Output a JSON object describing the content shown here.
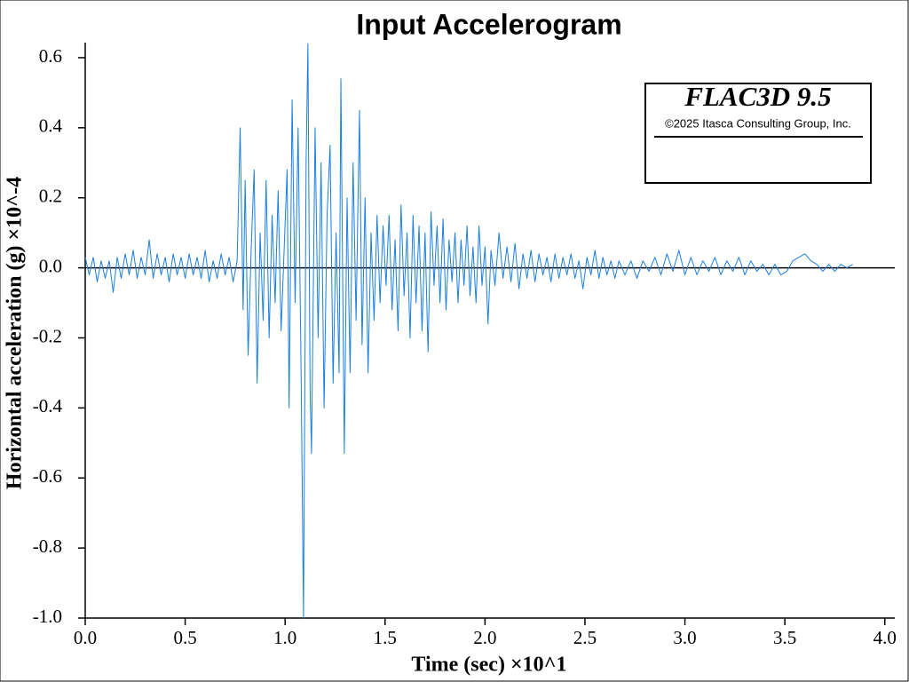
{
  "chart_data": {
    "type": "line",
    "title": "Input Accelerogram",
    "x_label": "Time (sec) ×10^1",
    "y_label": "Horizontal acceleration (g) ×10^-4",
    "annotations": [
      "FLAC3D 9.5",
      "©2025 Itasca Consulting Group, Inc."
    ],
    "xlim": [
      0,
      4.05
    ],
    "ylim": [
      -1,
      0.643
    ],
    "xticks": [
      {
        "value": 0,
        "label": "0.0"
      },
      0.5,
      {
        "value": 1,
        "label": "1.0"
      },
      1.5,
      {
        "value": 2,
        "label": "2.0"
      },
      2.5,
      {
        "value": 3,
        "label": "3.0"
      },
      3.5,
      {
        "value": 4,
        "label": "4.0"
      }
    ],
    "yticks": [
      0.6,
      0.4,
      0.2,
      {
        "value": 0,
        "label": "0.0"
      },
      -0.2,
      -0.4,
      -0.6,
      -0.8,
      {
        "value": -1,
        "label": "-1.0"
      }
    ],
    "zero_line": true,
    "x": [
      0.0,
      0.02,
      0.04,
      0.06,
      0.08,
      0.1,
      0.12,
      0.14,
      0.16,
      0.18,
      0.2,
      0.22,
      0.24,
      0.26,
      0.28,
      0.3,
      0.32,
      0.34,
      0.36,
      0.38,
      0.4,
      0.42,
      0.44,
      0.46,
      0.48,
      0.5,
      0.52,
      0.54,
      0.56,
      0.58,
      0.6,
      0.62,
      0.64,
      0.66,
      0.68,
      0.7,
      0.72,
      0.74,
      0.76,
      0.775,
      0.79,
      0.8,
      0.815,
      0.83,
      0.845,
      0.86,
      0.875,
      0.89,
      0.905,
      0.92,
      0.935,
      0.95,
      0.965,
      0.98,
      0.995,
      1.01,
      1.02,
      1.035,
      1.05,
      1.065,
      1.08,
      1.092,
      1.105,
      1.114,
      1.125,
      1.132,
      1.15,
      1.165,
      1.18,
      1.195,
      1.21,
      1.225,
      1.24,
      1.255,
      1.27,
      1.279,
      1.296,
      1.31,
      1.325,
      1.34,
      1.355,
      1.372,
      1.385,
      1.4,
      1.415,
      1.43,
      1.445,
      1.46,
      1.475,
      1.49,
      1.505,
      1.52,
      1.535,
      1.55,
      1.565,
      1.58,
      1.595,
      1.61,
      1.625,
      1.64,
      1.655,
      1.67,
      1.685,
      1.7,
      1.715,
      1.73,
      1.745,
      1.76,
      1.775,
      1.79,
      1.805,
      1.82,
      1.835,
      1.85,
      1.865,
      1.88,
      1.895,
      1.91,
      1.925,
      1.94,
      1.955,
      1.97,
      1.985,
      2.0,
      2.015,
      2.03,
      2.05,
      2.07,
      2.09,
      2.11,
      2.13,
      2.15,
      2.17,
      2.19,
      2.21,
      2.23,
      2.25,
      2.27,
      2.29,
      2.31,
      2.33,
      2.35,
      2.37,
      2.39,
      2.41,
      2.43,
      2.45,
      2.47,
      2.49,
      2.51,
      2.53,
      2.55,
      2.57,
      2.59,
      2.61,
      2.63,
      2.65,
      2.67,
      2.7,
      2.73,
      2.76,
      2.79,
      2.82,
      2.85,
      2.88,
      2.91,
      2.94,
      2.97,
      3.0,
      3.03,
      3.06,
      3.09,
      3.12,
      3.15,
      3.18,
      3.21,
      3.24,
      3.27,
      3.3,
      3.33,
      3.36,
      3.39,
      3.42,
      3.45,
      3.48,
      3.51,
      3.54,
      3.57,
      3.6,
      3.63,
      3.66,
      3.69,
      3.72,
      3.75,
      3.78,
      3.81,
      3.84
    ],
    "series": [
      {
        "color": "#1a7fe0",
        "values": [
          0.03,
          -0.02,
          0.03,
          -0.04,
          0.02,
          -0.03,
          0.02,
          -0.07,
          0.03,
          -0.03,
          0.04,
          -0.02,
          0.05,
          -0.03,
          0.03,
          -0.02,
          0.08,
          -0.03,
          0.04,
          -0.02,
          0.03,
          -0.04,
          0.04,
          -0.02,
          0.03,
          -0.03,
          0.04,
          -0.02,
          0.03,
          -0.03,
          0.05,
          -0.04,
          0.02,
          -0.03,
          0.04,
          -0.02,
          0.03,
          -0.04,
          0.02,
          0.4,
          -0.12,
          0.25,
          -0.25,
          0.05,
          0.28,
          -0.33,
          0.1,
          -0.15,
          0.25,
          -0.2,
          0.15,
          -0.1,
          0.22,
          -0.18,
          0.05,
          0.28,
          -0.4,
          0.48,
          -0.1,
          0.4,
          -0.3,
          -1.0,
          0.3,
          0.64,
          -0.35,
          -0.53,
          0.4,
          -0.2,
          0.3,
          -0.4,
          0.15,
          0.35,
          -0.33,
          0.1,
          -0.3,
          0.54,
          -0.53,
          0.2,
          -0.3,
          0.3,
          -0.15,
          0.45,
          -0.22,
          0.2,
          -0.3,
          0.1,
          -0.15,
          0.15,
          -0.1,
          0.12,
          -0.05,
          0.15,
          -0.12,
          0.08,
          -0.18,
          0.18,
          -0.08,
          0.1,
          -0.2,
          0.15,
          -0.1,
          0.12,
          -0.18,
          0.1,
          -0.24,
          0.16,
          -0.05,
          0.12,
          -0.1,
          0.14,
          -0.12,
          0.08,
          -0.04,
          0.1,
          -0.1,
          0.08,
          -0.05,
          0.12,
          -0.08,
          0.06,
          -0.1,
          0.12,
          -0.05,
          0.06,
          -0.16,
          0.05,
          -0.05,
          0.1,
          -0.03,
          0.06,
          -0.04,
          0.07,
          -0.06,
          0.04,
          -0.03,
          0.05,
          -0.04,
          0.04,
          -0.02,
          0.03,
          -0.04,
          0.04,
          -0.03,
          0.03,
          -0.02,
          0.04,
          -0.03,
          0.02,
          -0.06,
          0.03,
          -0.02,
          0.05,
          -0.03,
          0.03,
          -0.02,
          0.02,
          -0.03,
          0.02,
          -0.02,
          0.02,
          -0.03,
          0.02,
          -0.01,
          0.03,
          -0.02,
          0.04,
          -0.01,
          0.05,
          -0.02,
          0.03,
          -0.02,
          0.02,
          -0.01,
          0.03,
          -0.02,
          0.02,
          -0.01,
          0.03,
          -0.02,
          0.02,
          -0.01,
          0.01,
          -0.02,
          0.01,
          -0.02,
          -0.01,
          0.02,
          0.03,
          0.04,
          0.02,
          0.01,
          -0.01,
          0.01,
          -0.01,
          0.01,
          0.0,
          0.01
        ]
      }
    ]
  }
}
